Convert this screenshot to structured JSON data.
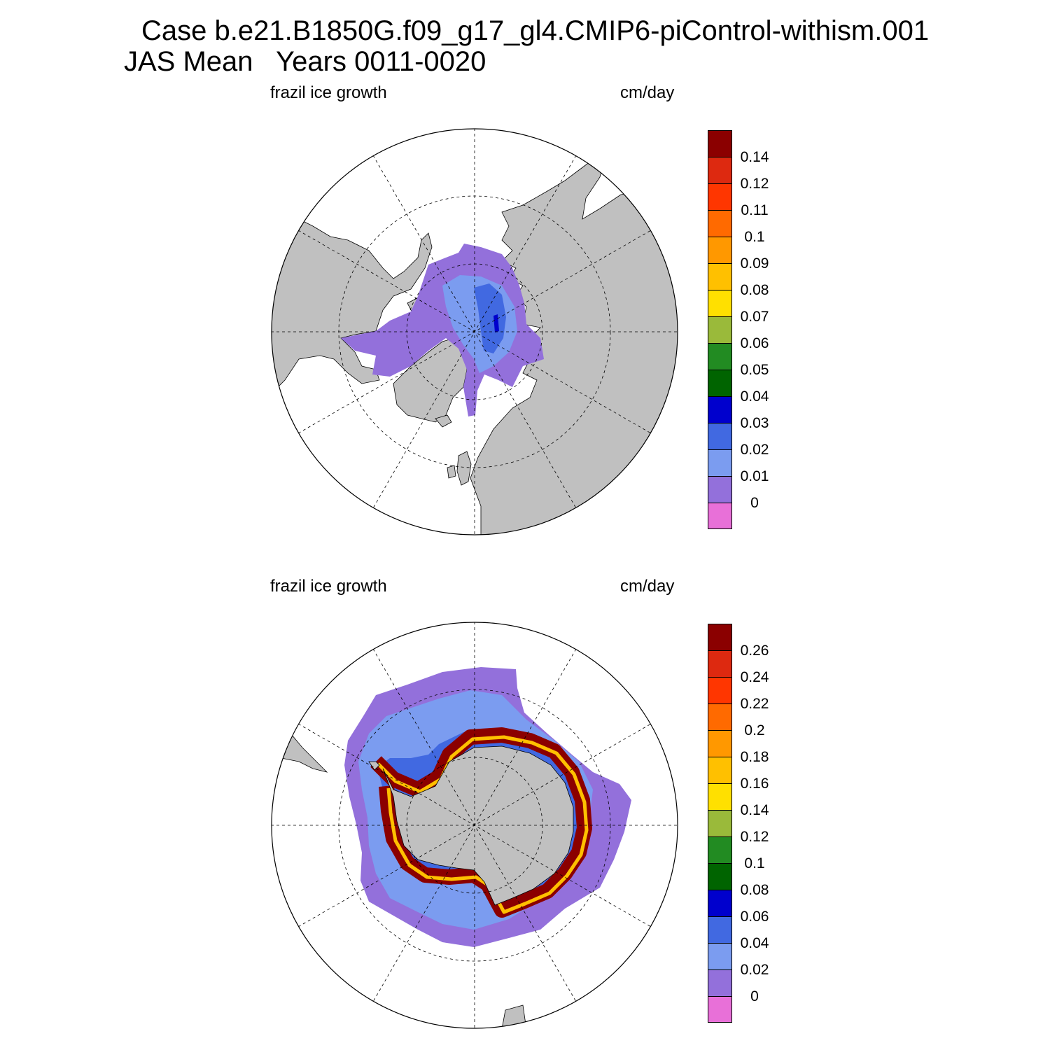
{
  "title": {
    "line1": "Case b.e21.B1850G.f09_g17_gl4.CMIP6-piControl-withism.001",
    "line2": "JAS Mean   Years 0011-0020"
  },
  "colors": {
    "land": "#c0c0c0",
    "ocean": "#ffffff",
    "scale": [
      "#e870d8",
      "#9370db",
      "#7b9cf0",
      "#4169e1",
      "#0000cd",
      "#006400",
      "#228b22",
      "#9aba3a",
      "#ffe000",
      "#ffc000",
      "#ff9800",
      "#ff6a00",
      "#ff3600",
      "#dd2910",
      "#8b0000"
    ]
  },
  "panels": [
    {
      "name": "north",
      "left_label": "frazil ice growth",
      "right_label": "cm/day",
      "colorbar_labels": [
        "0.14",
        "0.12",
        "0.11",
        "0.1",
        "0.09",
        "0.08",
        "0.07",
        "0.06",
        "0.05",
        "0.04",
        "0.03",
        "0.02",
        "0.01",
        "0"
      ]
    },
    {
      "name": "south",
      "left_label": "frazil ice growth",
      "right_label": "cm/day",
      "colorbar_labels": [
        "0.26",
        "0.24",
        "0.22",
        "0.2",
        "0.18",
        "0.16",
        "0.14",
        "0.12",
        "0.1",
        "0.08",
        "0.06",
        "0.04",
        "0.02",
        "0"
      ]
    }
  ]
}
